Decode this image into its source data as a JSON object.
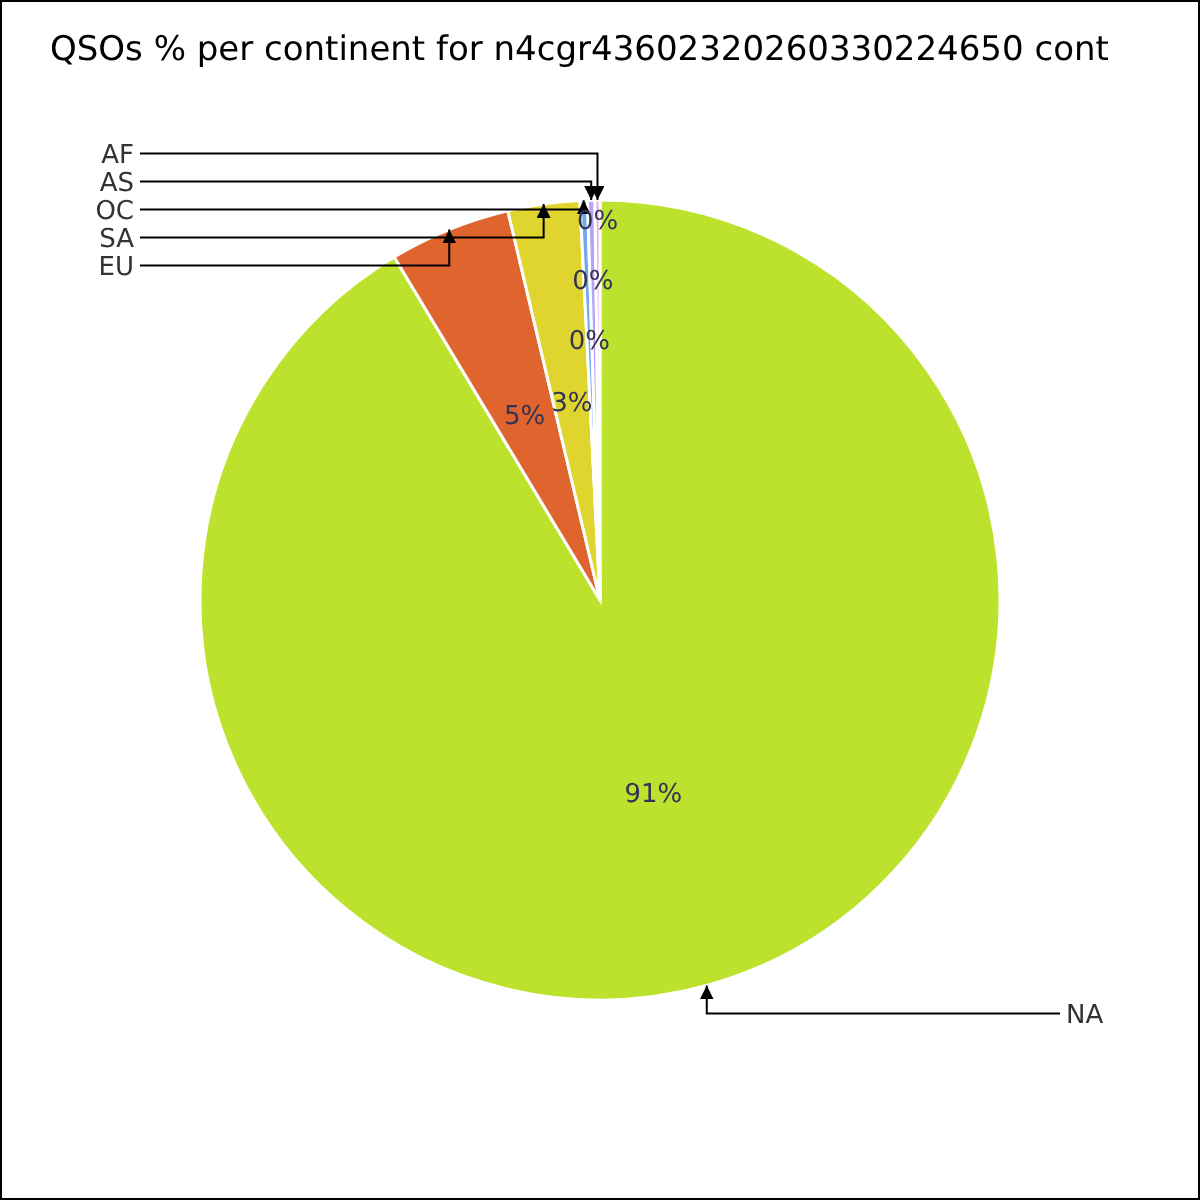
{
  "chart_data": {
    "type": "pie",
    "title": "QSOs % per continent for n4cgr43602320260330224650 cont",
    "categories": [
      "NA",
      "EU",
      "SA",
      "OC",
      "AS",
      "AF"
    ],
    "values": [
      91.4,
      4.9,
      2.9,
      0.3,
      0.3,
      0.2
    ],
    "colors": [
      "#bde22e",
      "#e0642e",
      "#e0d52e",
      "#6fa8f0",
      "#b8a4f4",
      "#f0a8e8"
    ],
    "value_labels": [
      "91%",
      "5%",
      "3%",
      "0%",
      "0%",
      "0%"
    ]
  }
}
